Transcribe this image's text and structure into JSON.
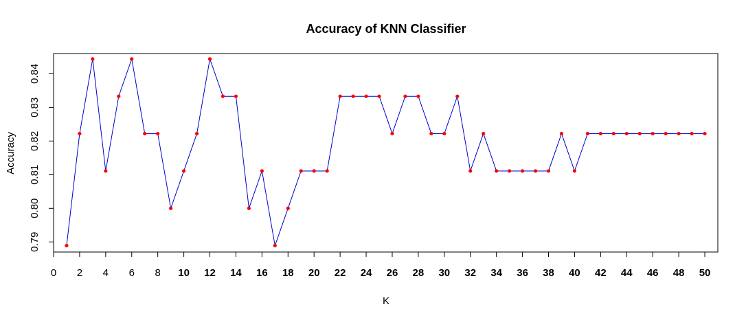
{
  "chart_data": {
    "type": "line",
    "title": "Accuracy of KNN Classifier",
    "xlabel": "K",
    "ylabel": "Accuracy",
    "xlim": [
      0,
      51
    ],
    "ylim": [
      0.787,
      0.846
    ],
    "x_ticks": [
      0,
      2,
      4,
      6,
      8,
      10,
      12,
      14,
      16,
      18,
      20,
      22,
      24,
      26,
      28,
      30,
      32,
      34,
      36,
      38,
      40,
      42,
      44,
      46,
      48,
      50
    ],
    "x_ticks_bold": [
      10,
      12,
      14,
      16,
      18,
      20,
      22,
      24,
      26,
      28,
      30,
      32,
      34,
      36,
      38,
      40,
      42,
      44,
      46,
      48,
      50
    ],
    "y_ticks": [
      0.79,
      0.8,
      0.81,
      0.82,
      0.83,
      0.84
    ],
    "y_tick_labels": [
      "0.79",
      "0.80",
      "0.81",
      "0.82",
      "0.83",
      "0.84"
    ],
    "grid": false,
    "line_color": "#0000cc",
    "point_color": "#ff0000",
    "series": [
      {
        "x": [
          1,
          2,
          3,
          4,
          5,
          6,
          7,
          8,
          9,
          10,
          11,
          12,
          13,
          14,
          15,
          16,
          17,
          18,
          19,
          20,
          21,
          22,
          23,
          24,
          25,
          26,
          27,
          28,
          29,
          30,
          31,
          32,
          33,
          34,
          35,
          36,
          37,
          38,
          39,
          40,
          41,
          42,
          43,
          44,
          45,
          46,
          47,
          48,
          49,
          50
        ],
        "values": [
          0.7889,
          0.8222,
          0.8444,
          0.8111,
          0.8333,
          0.8444,
          0.8222,
          0.8222,
          0.8,
          0.8111,
          0.8222,
          0.8444,
          0.8333,
          0.8333,
          0.8,
          0.8111,
          0.7889,
          0.8,
          0.8111,
          0.8111,
          0.8111,
          0.8333,
          0.8333,
          0.8333,
          0.8333,
          0.8222,
          0.8333,
          0.8333,
          0.8222,
          0.8222,
          0.8333,
          0.8111,
          0.8222,
          0.8111,
          0.8111,
          0.8111,
          0.8111,
          0.8111,
          0.8222,
          0.8111,
          0.8222,
          0.8222,
          0.8222,
          0.8222,
          0.8222,
          0.8222,
          0.8222,
          0.8222,
          0.8222,
          0.8222
        ]
      }
    ]
  }
}
